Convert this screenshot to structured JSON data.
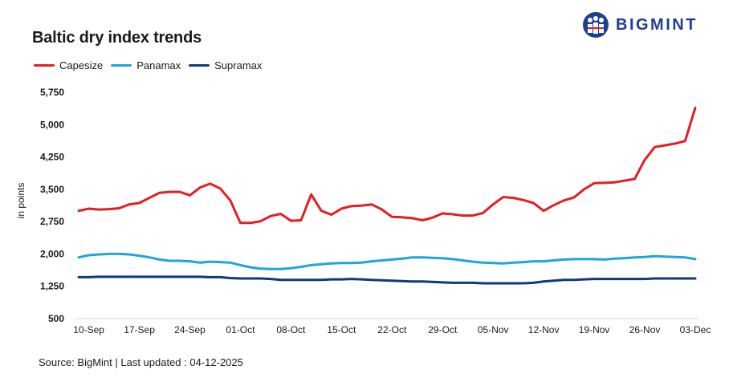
{
  "brand": {
    "name": "BIGMINT",
    "color": "#1c3f8f"
  },
  "title": "Baltic dry index trends",
  "source": "Source: BigMint | Last updated : 04-12-2025",
  "chart_data": {
    "type": "line",
    "title": "Baltic dry index trends",
    "ylabel": "in points",
    "xlabel": "",
    "ylim": [
      500,
      5750
    ],
    "yticks": [
      "500",
      "1,250",
      "2,000",
      "2,750",
      "3,500",
      "4,250",
      "5,000",
      "5,750"
    ],
    "ytick_values": [
      500,
      1250,
      2000,
      2750,
      3500,
      4250,
      5000,
      5750
    ],
    "xticks": [
      "10-Sep",
      "17-Sep",
      "24-Sep",
      "01-Oct",
      "08-Oct",
      "15-Oct",
      "22-Oct",
      "29-Oct",
      "05-Nov",
      "12-Nov",
      "19-Nov",
      "26-Nov",
      "03-Dec"
    ],
    "xtick_index": [
      1,
      6,
      11,
      16,
      21,
      26,
      31,
      36,
      41,
      46,
      51,
      56,
      61
    ],
    "x": [
      "09-Sep",
      "10-Sep",
      "11-Sep",
      "12-Sep",
      "15-Sep",
      "16-Sep",
      "17-Sep",
      "18-Sep",
      "19-Sep",
      "22-Sep",
      "23-Sep",
      "24-Sep",
      "25-Sep",
      "26-Sep",
      "29-Sep",
      "30-Sep",
      "01-Oct",
      "02-Oct",
      "03-Oct",
      "06-Oct",
      "07-Oct",
      "08-Oct",
      "09-Oct",
      "10-Oct",
      "13-Oct",
      "14-Oct",
      "15-Oct",
      "16-Oct",
      "17-Oct",
      "20-Oct",
      "21-Oct",
      "22-Oct",
      "23-Oct",
      "24-Oct",
      "27-Oct",
      "28-Oct",
      "29-Oct",
      "30-Oct",
      "31-Oct",
      "03-Nov",
      "04-Nov",
      "05-Nov",
      "06-Nov",
      "07-Nov",
      "10-Nov",
      "11-Nov",
      "12-Nov",
      "13-Nov",
      "14-Nov",
      "17-Nov",
      "18-Nov",
      "19-Nov",
      "20-Nov",
      "21-Nov",
      "24-Nov",
      "25-Nov",
      "26-Nov",
      "27-Nov",
      "28-Nov",
      "01-Dec",
      "02-Dec",
      "03-Dec"
    ],
    "legend_position": "top-left",
    "grid": false,
    "series": [
      {
        "name": "Capesize",
        "color": "#e31e24",
        "values": [
          3000,
          3050,
          3030,
          3040,
          3060,
          3150,
          3180,
          3300,
          3420,
          3440,
          3440,
          3360,
          3540,
          3630,
          3520,
          3240,
          2720,
          2720,
          2760,
          2880,
          2930,
          2770,
          2780,
          3380,
          3000,
          2910,
          3050,
          3110,
          3120,
          3150,
          3030,
          2860,
          2850,
          2830,
          2780,
          2840,
          2940,
          2920,
          2890,
          2890,
          2950,
          3150,
          3320,
          3300,
          3250,
          3180,
          3000,
          3130,
          3240,
          3310,
          3500,
          3640,
          3650,
          3660,
          3700,
          3740,
          4180,
          4480,
          4520,
          4560,
          4620,
          5390
        ]
      },
      {
        "name": "Panamax",
        "color": "#1ea5dc",
        "values": [
          1920,
          1970,
          1990,
          2000,
          2000,
          1990,
          1960,
          1920,
          1870,
          1840,
          1840,
          1830,
          1800,
          1820,
          1810,
          1800,
          1740,
          1690,
          1660,
          1650,
          1650,
          1670,
          1700,
          1740,
          1760,
          1780,
          1790,
          1790,
          1800,
          1830,
          1850,
          1870,
          1890,
          1920,
          1920,
          1910,
          1900,
          1880,
          1850,
          1820,
          1800,
          1790,
          1780,
          1800,
          1810,
          1830,
          1830,
          1850,
          1870,
          1880,
          1880,
          1880,
          1870,
          1890,
          1900,
          1920,
          1930,
          1950,
          1940,
          1930,
          1920,
          1880
        ]
      },
      {
        "name": "Supramax",
        "color": "#12397a",
        "values": [
          1460,
          1460,
          1470,
          1470,
          1470,
          1470,
          1470,
          1470,
          1470,
          1470,
          1470,
          1470,
          1470,
          1460,
          1460,
          1440,
          1430,
          1430,
          1430,
          1420,
          1400,
          1400,
          1400,
          1400,
          1400,
          1410,
          1410,
          1420,
          1410,
          1400,
          1390,
          1380,
          1370,
          1360,
          1360,
          1350,
          1340,
          1330,
          1330,
          1330,
          1320,
          1320,
          1320,
          1320,
          1320,
          1330,
          1360,
          1380,
          1400,
          1400,
          1410,
          1420,
          1420,
          1420,
          1420,
          1420,
          1420,
          1430,
          1430,
          1430,
          1430,
          1430
        ]
      }
    ]
  }
}
